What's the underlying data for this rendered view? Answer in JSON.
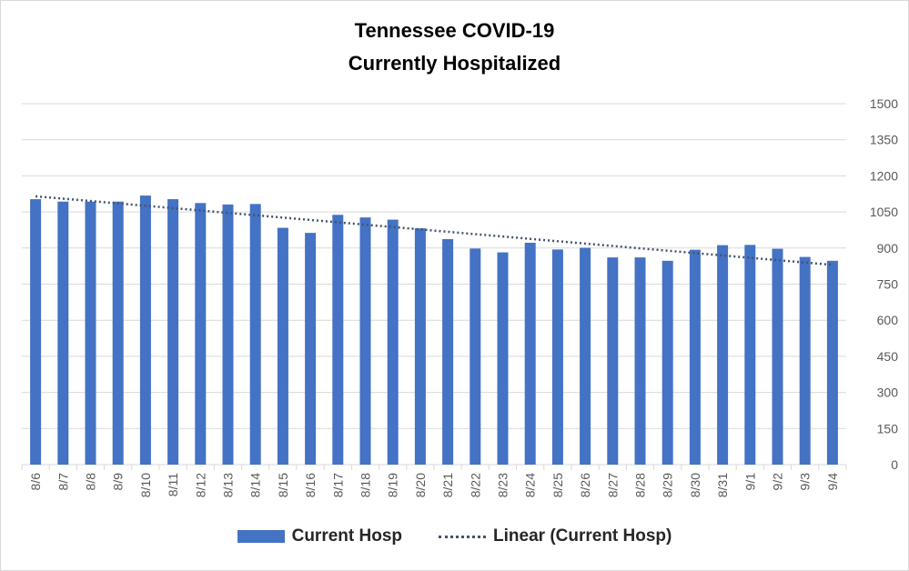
{
  "chart_data": {
    "type": "bar",
    "title_line1": "Tennessee COVID-19",
    "title_line2": "Currently Hospitalized",
    "categories": [
      "8/6",
      "8/7",
      "8/8",
      "8/9",
      "8/10",
      "8/11",
      "8/12",
      "8/13",
      "8/14",
      "8/15",
      "8/16",
      "8/17",
      "8/18",
      "8/19",
      "8/20",
      "8/21",
      "8/22",
      "8/23",
      "8/24",
      "8/25",
      "8/26",
      "8/27",
      "8/28",
      "8/29",
      "8/30",
      "8/31",
      "9/1",
      "9/2",
      "9/3",
      "9/4"
    ],
    "series": [
      {
        "name": "Current Hosp",
        "values": [
          1103,
          1093,
          1093,
          1093,
          1118,
          1103,
          1087,
          1081,
          1083,
          984,
          963,
          1038,
          1027,
          1018,
          982,
          937,
          898,
          882,
          922,
          894,
          901,
          861,
          861,
          847,
          893,
          912,
          913,
          897,
          863,
          847
        ]
      }
    ],
    "trendline": {
      "name": "Linear (Current Hosp)",
      "start": 1115,
      "end": 830
    },
    "ylim": [
      0,
      1500
    ],
    "yticks": [
      0,
      150,
      300,
      450,
      600,
      750,
      900,
      1050,
      1200,
      1350,
      1500
    ],
    "y_axis_position": "right",
    "grid": true,
    "legend_position": "bottom",
    "colors": {
      "bar": "#4472c4",
      "trend": "#44546a",
      "grid": "#d9d9d9",
      "tick": "#595959"
    }
  }
}
